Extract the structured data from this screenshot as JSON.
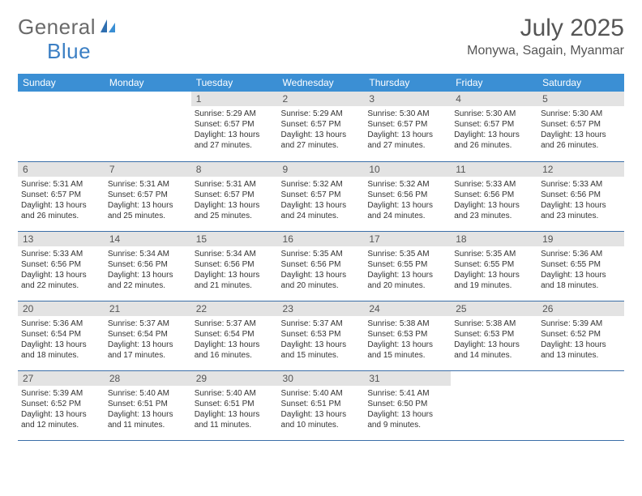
{
  "brand": {
    "word1": "General",
    "word2": "Blue"
  },
  "title": "July 2025",
  "location": "Monywa, Sagain, Myanmar",
  "colors": {
    "header_bg": "#3b8fd4",
    "header_text": "#ffffff",
    "daynum_bg": "#e3e3e3",
    "row_border": "#3b6fa8",
    "brand_gray": "#6a6a6a",
    "brand_blue": "#3b7fc4",
    "body_text": "#333333",
    "title_text": "#555555",
    "page_bg": "#ffffff"
  },
  "typography": {
    "title_fontsize": 30,
    "location_fontsize": 16,
    "header_fontsize": 12,
    "daynum_fontsize": 12,
    "body_fontsize": 10,
    "logo_fontsize": 26
  },
  "day_headers": [
    "Sunday",
    "Monday",
    "Tuesday",
    "Wednesday",
    "Thursday",
    "Friday",
    "Saturday"
  ],
  "weeks": [
    [
      {
        "n": "",
        "lines": []
      },
      {
        "n": "",
        "lines": []
      },
      {
        "n": "1",
        "lines": [
          "Sunrise: 5:29 AM",
          "Sunset: 6:57 PM",
          "Daylight: 13 hours",
          "and 27 minutes."
        ]
      },
      {
        "n": "2",
        "lines": [
          "Sunrise: 5:29 AM",
          "Sunset: 6:57 PM",
          "Daylight: 13 hours",
          "and 27 minutes."
        ]
      },
      {
        "n": "3",
        "lines": [
          "Sunrise: 5:30 AM",
          "Sunset: 6:57 PM",
          "Daylight: 13 hours",
          "and 27 minutes."
        ]
      },
      {
        "n": "4",
        "lines": [
          "Sunrise: 5:30 AM",
          "Sunset: 6:57 PM",
          "Daylight: 13 hours",
          "and 26 minutes."
        ]
      },
      {
        "n": "5",
        "lines": [
          "Sunrise: 5:30 AM",
          "Sunset: 6:57 PM",
          "Daylight: 13 hours",
          "and 26 minutes."
        ]
      }
    ],
    [
      {
        "n": "6",
        "lines": [
          "Sunrise: 5:31 AM",
          "Sunset: 6:57 PM",
          "Daylight: 13 hours",
          "and 26 minutes."
        ]
      },
      {
        "n": "7",
        "lines": [
          "Sunrise: 5:31 AM",
          "Sunset: 6:57 PM",
          "Daylight: 13 hours",
          "and 25 minutes."
        ]
      },
      {
        "n": "8",
        "lines": [
          "Sunrise: 5:31 AM",
          "Sunset: 6:57 PM",
          "Daylight: 13 hours",
          "and 25 minutes."
        ]
      },
      {
        "n": "9",
        "lines": [
          "Sunrise: 5:32 AM",
          "Sunset: 6:57 PM",
          "Daylight: 13 hours",
          "and 24 minutes."
        ]
      },
      {
        "n": "10",
        "lines": [
          "Sunrise: 5:32 AM",
          "Sunset: 6:56 PM",
          "Daylight: 13 hours",
          "and 24 minutes."
        ]
      },
      {
        "n": "11",
        "lines": [
          "Sunrise: 5:33 AM",
          "Sunset: 6:56 PM",
          "Daylight: 13 hours",
          "and 23 minutes."
        ]
      },
      {
        "n": "12",
        "lines": [
          "Sunrise: 5:33 AM",
          "Sunset: 6:56 PM",
          "Daylight: 13 hours",
          "and 23 minutes."
        ]
      }
    ],
    [
      {
        "n": "13",
        "lines": [
          "Sunrise: 5:33 AM",
          "Sunset: 6:56 PM",
          "Daylight: 13 hours",
          "and 22 minutes."
        ]
      },
      {
        "n": "14",
        "lines": [
          "Sunrise: 5:34 AM",
          "Sunset: 6:56 PM",
          "Daylight: 13 hours",
          "and 22 minutes."
        ]
      },
      {
        "n": "15",
        "lines": [
          "Sunrise: 5:34 AM",
          "Sunset: 6:56 PM",
          "Daylight: 13 hours",
          "and 21 minutes."
        ]
      },
      {
        "n": "16",
        "lines": [
          "Sunrise: 5:35 AM",
          "Sunset: 6:56 PM",
          "Daylight: 13 hours",
          "and 20 minutes."
        ]
      },
      {
        "n": "17",
        "lines": [
          "Sunrise: 5:35 AM",
          "Sunset: 6:55 PM",
          "Daylight: 13 hours",
          "and 20 minutes."
        ]
      },
      {
        "n": "18",
        "lines": [
          "Sunrise: 5:35 AM",
          "Sunset: 6:55 PM",
          "Daylight: 13 hours",
          "and 19 minutes."
        ]
      },
      {
        "n": "19",
        "lines": [
          "Sunrise: 5:36 AM",
          "Sunset: 6:55 PM",
          "Daylight: 13 hours",
          "and 18 minutes."
        ]
      }
    ],
    [
      {
        "n": "20",
        "lines": [
          "Sunrise: 5:36 AM",
          "Sunset: 6:54 PM",
          "Daylight: 13 hours",
          "and 18 minutes."
        ]
      },
      {
        "n": "21",
        "lines": [
          "Sunrise: 5:37 AM",
          "Sunset: 6:54 PM",
          "Daylight: 13 hours",
          "and 17 minutes."
        ]
      },
      {
        "n": "22",
        "lines": [
          "Sunrise: 5:37 AM",
          "Sunset: 6:54 PM",
          "Daylight: 13 hours",
          "and 16 minutes."
        ]
      },
      {
        "n": "23",
        "lines": [
          "Sunrise: 5:37 AM",
          "Sunset: 6:53 PM",
          "Daylight: 13 hours",
          "and 15 minutes."
        ]
      },
      {
        "n": "24",
        "lines": [
          "Sunrise: 5:38 AM",
          "Sunset: 6:53 PM",
          "Daylight: 13 hours",
          "and 15 minutes."
        ]
      },
      {
        "n": "25",
        "lines": [
          "Sunrise: 5:38 AM",
          "Sunset: 6:53 PM",
          "Daylight: 13 hours",
          "and 14 minutes."
        ]
      },
      {
        "n": "26",
        "lines": [
          "Sunrise: 5:39 AM",
          "Sunset: 6:52 PM",
          "Daylight: 13 hours",
          "and 13 minutes."
        ]
      }
    ],
    [
      {
        "n": "27",
        "lines": [
          "Sunrise: 5:39 AM",
          "Sunset: 6:52 PM",
          "Daylight: 13 hours",
          "and 12 minutes."
        ]
      },
      {
        "n": "28",
        "lines": [
          "Sunrise: 5:40 AM",
          "Sunset: 6:51 PM",
          "Daylight: 13 hours",
          "and 11 minutes."
        ]
      },
      {
        "n": "29",
        "lines": [
          "Sunrise: 5:40 AM",
          "Sunset: 6:51 PM",
          "Daylight: 13 hours",
          "and 11 minutes."
        ]
      },
      {
        "n": "30",
        "lines": [
          "Sunrise: 5:40 AM",
          "Sunset: 6:51 PM",
          "Daylight: 13 hours",
          "and 10 minutes."
        ]
      },
      {
        "n": "31",
        "lines": [
          "Sunrise: 5:41 AM",
          "Sunset: 6:50 PM",
          "Daylight: 13 hours",
          "and 9 minutes."
        ]
      },
      {
        "n": "",
        "lines": []
      },
      {
        "n": "",
        "lines": []
      }
    ]
  ]
}
